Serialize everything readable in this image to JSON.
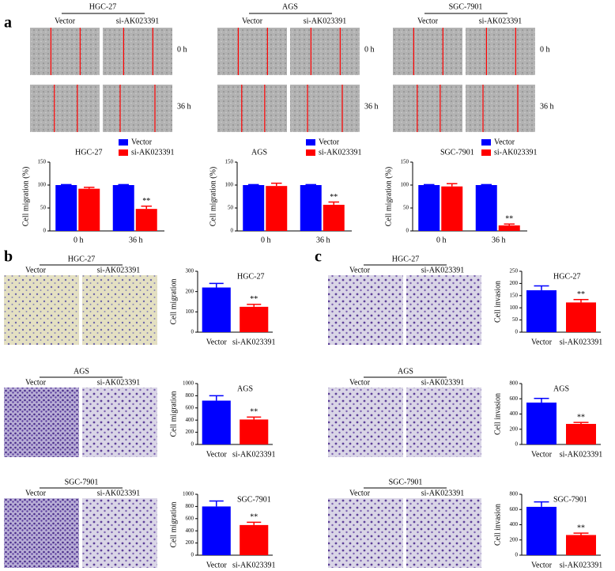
{
  "scratch_assay": {
    "panel_label": "a",
    "groups": [
      {
        "title": "HGC-27",
        "columns": [
          "Vector",
          "si-AK023391"
        ],
        "times": [
          "0 h",
          "36 h"
        ]
      },
      {
        "title": "AGS",
        "columns": [
          "Vector",
          "si-AK023391"
        ],
        "times": [
          "0 h",
          "36 h"
        ]
      },
      {
        "title": "SGC-7901",
        "columns": [
          "Vector",
          "si-AK023391"
        ],
        "times": [
          "0 h",
          "36 h"
        ]
      }
    ]
  },
  "migration_assay": {
    "panel_label": "b",
    "groups": [
      {
        "title": "HGC-27",
        "columns": [
          "Vector",
          "si-AK023391"
        ]
      },
      {
        "title": "AGS",
        "columns": [
          "Vector",
          "si-AK023391"
        ]
      },
      {
        "title": "SGC-7901",
        "columns": [
          "Vector",
          "si-AK023391"
        ]
      }
    ]
  },
  "invasion_assay": {
    "panel_label": "c",
    "groups": [
      {
        "title": "HGC-27",
        "columns": [
          "Vector",
          "si-AK023391"
        ]
      },
      {
        "title": "AGS",
        "columns": [
          "Vector",
          "si-AK023391"
        ]
      },
      {
        "title": "SGC-7901",
        "columns": [
          "Vector",
          "si-AK023391"
        ]
      }
    ]
  },
  "chart_data": [
    {
      "type": "bar",
      "title": "HGC-27",
      "ylabel": "Cell migration (%)",
      "categories": [
        "0 h",
        "36 h"
      ],
      "series": [
        {
          "name": "Vector",
          "color": "#0000ff",
          "values": [
            100,
            100
          ],
          "errors": [
            1,
            1
          ]
        },
        {
          "name": "si-AK023391",
          "color": "#ff0000",
          "values": [
            92,
            48
          ],
          "errors": [
            3,
            6
          ]
        }
      ],
      "ylim": [
        0,
        150
      ],
      "yticks": [
        0,
        50,
        100,
        150
      ],
      "annotation": "**"
    },
    {
      "type": "bar",
      "title": "AGS",
      "ylabel": "Cell migration (%)",
      "categories": [
        "0 h",
        "36 h"
      ],
      "series": [
        {
          "name": "Vector",
          "color": "#0000ff",
          "values": [
            100,
            100
          ],
          "errors": [
            1,
            1
          ]
        },
        {
          "name": "si-AK023391",
          "color": "#ff0000",
          "values": [
            98,
            57
          ],
          "errors": [
            6,
            6
          ]
        }
      ],
      "ylim": [
        0,
        150
      ],
      "yticks": [
        0,
        50,
        100,
        150
      ],
      "annotation": "**"
    },
    {
      "type": "bar",
      "title": "SGC-7901",
      "ylabel": "Cell migration (%)",
      "categories": [
        "0 h",
        "36 h"
      ],
      "series": [
        {
          "name": "Vector",
          "color": "#0000ff",
          "values": [
            100,
            100
          ],
          "errors": [
            1,
            1
          ]
        },
        {
          "name": "si-AK023391",
          "color": "#ff0000",
          "values": [
            97,
            12
          ],
          "errors": [
            6,
            3
          ]
        }
      ],
      "ylim": [
        0,
        150
      ],
      "yticks": [
        0,
        50,
        100,
        150
      ],
      "annotation": "**"
    },
    {
      "type": "bar",
      "title": "HGC-27",
      "ylabel": "Cell migration",
      "categories": [
        "Vector",
        "si-AK023391"
      ],
      "values": [
        220,
        125
      ],
      "errors": [
        20,
        12
      ],
      "colors": [
        "#0000ff",
        "#ff0000"
      ],
      "ylim": [
        0,
        300
      ],
      "yticks": [
        0,
        100,
        200,
        300
      ],
      "annotation": "**"
    },
    {
      "type": "bar",
      "title": "AGS",
      "ylabel": "Cell migration",
      "categories": [
        "Vector",
        "si-AK023391"
      ],
      "values": [
        720,
        410
      ],
      "errors": [
        80,
        40
      ],
      "colors": [
        "#0000ff",
        "#ff0000"
      ],
      "ylim": [
        0,
        1000
      ],
      "yticks": [
        0,
        200,
        400,
        600,
        800,
        1000
      ],
      "annotation": "**"
    },
    {
      "type": "bar",
      "title": "SGC-7901",
      "ylabel": "Cell migration",
      "categories": [
        "Vector",
        "si-AK023391"
      ],
      "values": [
        800,
        495
      ],
      "errors": [
        90,
        45
      ],
      "colors": [
        "#0000ff",
        "#ff0000"
      ],
      "ylim": [
        0,
        1000
      ],
      "yticks": [
        0,
        200,
        400,
        600,
        800,
        1000
      ],
      "annotation": "**"
    },
    {
      "type": "bar",
      "title": "HGC-27",
      "ylabel": "Cell invasion",
      "categories": [
        "Vector",
        "si-AK023391"
      ],
      "values": [
        172,
        122
      ],
      "errors": [
        18,
        12
      ],
      "colors": [
        "#0000ff",
        "#ff0000"
      ],
      "ylim": [
        0,
        250
      ],
      "yticks": [
        0,
        50,
        100,
        150,
        200,
        250
      ],
      "annotation": "**"
    },
    {
      "type": "bar",
      "title": "AGS",
      "ylabel": "Cell invasion",
      "categories": [
        "Vector",
        "si-AK023391"
      ],
      "values": [
        550,
        270
      ],
      "errors": [
        55,
        20
      ],
      "colors": [
        "#0000ff",
        "#ff0000"
      ],
      "ylim": [
        0,
        800
      ],
      "yticks": [
        0,
        200,
        400,
        600,
        800
      ],
      "annotation": "**"
    },
    {
      "type": "bar",
      "title": "SGC-7901",
      "ylabel": "Cell invasion",
      "categories": [
        "Vector",
        "si-AK023391"
      ],
      "values": [
        635,
        265
      ],
      "errors": [
        65,
        25
      ],
      "colors": [
        "#0000ff",
        "#ff0000"
      ],
      "ylim": [
        0,
        800
      ],
      "yticks": [
        0,
        200,
        400,
        600,
        800
      ],
      "annotation": "**"
    }
  ]
}
